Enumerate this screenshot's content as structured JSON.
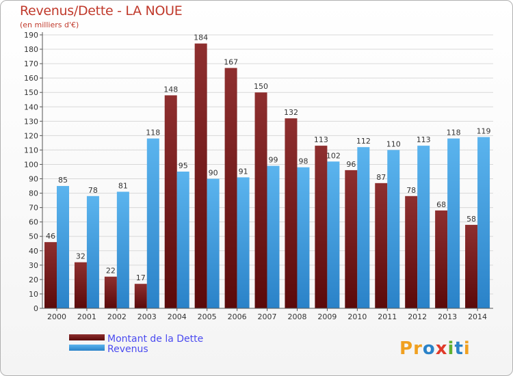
{
  "header": {
    "title": "Revenus/Dette - LA NOUE",
    "subtitle": "(en milliers d'€)"
  },
  "logo": {
    "text": "Proxiti"
  },
  "colors": {
    "dette": "#7a1a1a",
    "revenus": "#3a9de0",
    "title": "#c0392b",
    "legend_text": "#4a4af0"
  },
  "chart_data": {
    "type": "bar",
    "categories": [
      "2000",
      "2001",
      "2002",
      "2003",
      "2004",
      "2005",
      "2006",
      "2007",
      "2008",
      "2009",
      "2010",
      "2011",
      "2012",
      "2013",
      "2014"
    ],
    "series": [
      {
        "name": "Montant de la Dette",
        "values": [
          46,
          32,
          22,
          17,
          148,
          184,
          167,
          150,
          132,
          113,
          96,
          87,
          78,
          68,
          58
        ]
      },
      {
        "name": "Revenus",
        "values": [
          85,
          78,
          81,
          118,
          95,
          90,
          91,
          99,
          98,
          102,
          112,
          110,
          113,
          118,
          119
        ]
      }
    ],
    "yticks": [
      0,
      10,
      20,
      30,
      40,
      50,
      60,
      70,
      80,
      90,
      100,
      110,
      120,
      130,
      140,
      150,
      160,
      170,
      180,
      190
    ],
    "ylim": [
      0,
      190
    ],
    "grid": true,
    "legend_position": "bottom-left"
  }
}
